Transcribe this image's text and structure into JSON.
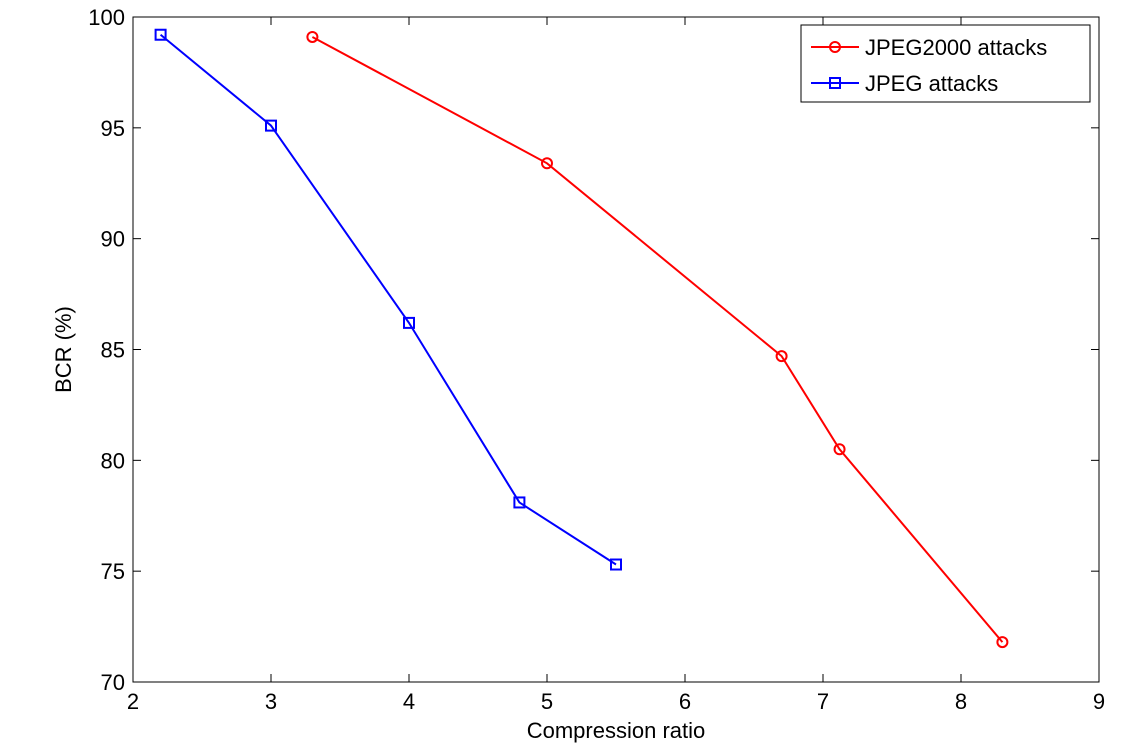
{
  "chart_data": {
    "type": "line",
    "xlabel": "Compression ratio",
    "ylabel": "BCR (%)",
    "xlim": [
      2,
      9
    ],
    "ylim": [
      70,
      100
    ],
    "xticks": [
      2,
      3,
      4,
      5,
      6,
      7,
      8,
      9
    ],
    "yticks": [
      70,
      75,
      80,
      85,
      90,
      95,
      100
    ],
    "grid": false,
    "legend_position": "top-right",
    "series": [
      {
        "name": "JPEG2000 attacks",
        "color": "#ff0000",
        "marker": "circle",
        "x": [
          3.3,
          5.0,
          6.7,
          7.12,
          8.3
        ],
        "y": [
          99.1,
          93.4,
          84.7,
          80.5,
          71.8
        ]
      },
      {
        "name": "JPEG attacks",
        "color": "#0000ff",
        "marker": "square",
        "x": [
          2.2,
          3.0,
          4.0,
          4.8,
          5.5
        ],
        "y": [
          99.2,
          95.1,
          86.2,
          78.1,
          75.3
        ]
      }
    ]
  }
}
